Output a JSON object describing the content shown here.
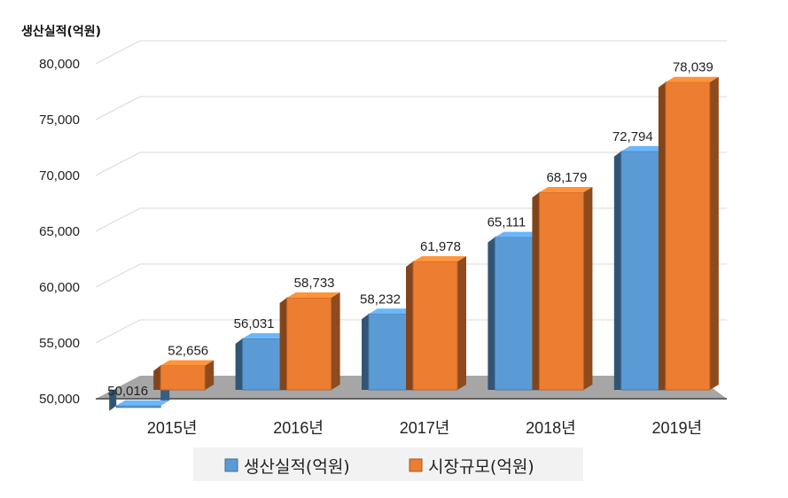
{
  "chart_data": {
    "type": "bar",
    "ylabel": "생산실적(억원)",
    "categories": [
      "2015년",
      "2016년",
      "2017년",
      "2018년",
      "2019년"
    ],
    "series": [
      {
        "name": "생산실적(억원)",
        "values": [
          50016,
          56031,
          58232,
          65111,
          72794
        ],
        "color": "#5b9bd5"
      },
      {
        "name": "시장규모(억원)",
        "values": [
          52656,
          58733,
          61978,
          68179,
          78039
        ],
        "color": "#ed7d31"
      }
    ],
    "value_labels": [
      [
        "50,016",
        "56,031",
        "58,232",
        "65,111",
        "72,794"
      ],
      [
        "52,656",
        "58,733",
        "61,978",
        "68,179",
        "78,039"
      ]
    ],
    "yticks": [
      "50,000",
      "55,000",
      "60,000",
      "65,000",
      "70,000",
      "75,000",
      "80,000"
    ],
    "ylim": [
      50000,
      80000
    ],
    "grid": true,
    "legend": "bottom",
    "three_d": true
  }
}
